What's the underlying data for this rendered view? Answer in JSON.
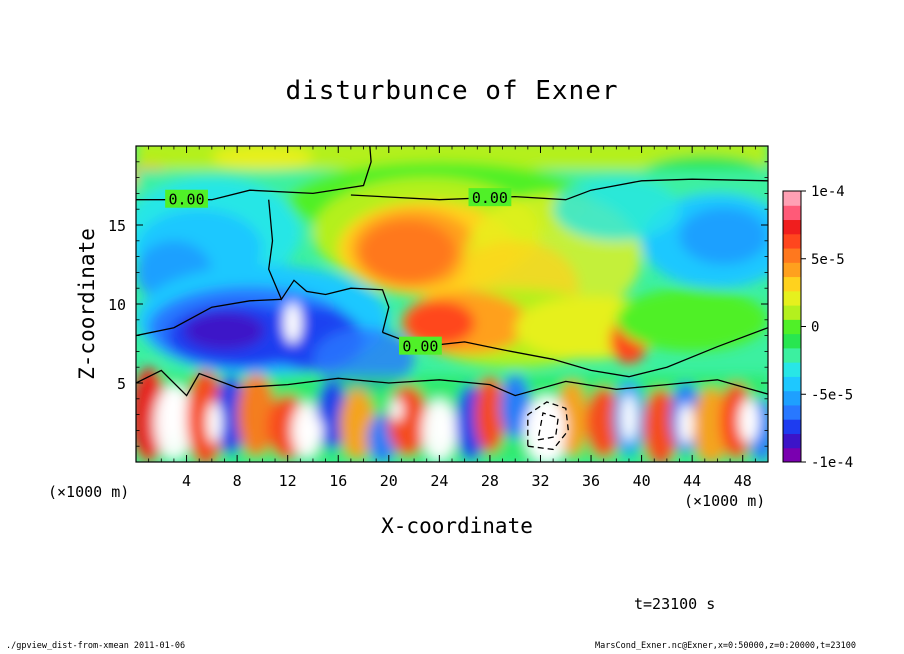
{
  "chart_data": {
    "type": "heatmap",
    "title": "disturbunce of Exner",
    "xlabel": "X-coordinate",
    "ylabel": "Z-coordinate",
    "x_unit": "(×1000 m)",
    "z_unit": "(×1000 m)",
    "xlim": [
      0,
      50
    ],
    "ylim": [
      0,
      20
    ],
    "x_ticks": [
      4,
      8,
      12,
      16,
      20,
      24,
      28,
      32,
      36,
      40,
      44,
      48
    ],
    "y_ticks": [
      5,
      10,
      15
    ],
    "colorbar": {
      "min": -0.0001,
      "max": 0.0001,
      "ticks": [
        {
          "value": 0.0001,
          "label": "1e-4"
        },
        {
          "value": 5e-05,
          "label": "5e-5"
        },
        {
          "value": 0,
          "label": "0"
        },
        {
          "value": -5e-05,
          "label": "-5e-5"
        },
        {
          "value": -0.0001,
          "label": "-1e-4"
        }
      ],
      "colors": [
        "#7a00b0",
        "#3c14c8",
        "#1e3cf0",
        "#2878ff",
        "#1ea0ff",
        "#1ec8ff",
        "#28e6e6",
        "#3cf0a0",
        "#28e650",
        "#50f028",
        "#b4f01e",
        "#e6f01e",
        "#ffd21e",
        "#ffa01e",
        "#ff781e",
        "#ff461e",
        "#f01e1e",
        "#ff5a78",
        "#ffa0b4"
      ]
    },
    "contour_labels": [
      {
        "text": "0.00",
        "x": 4,
        "z": 16.6
      },
      {
        "text": "0.00",
        "x": 28,
        "z": 16.7
      },
      {
        "text": "0.00",
        "x": 22.5,
        "z": 7.3
      }
    ]
  },
  "time_label": "t=23100 s",
  "footer_left": "./gpview_dist-from-xmean  2011-01-06",
  "footer_right": "MarsCond_Exner.nc@Exner,x=0:50000,z=0:20000,t=23100"
}
